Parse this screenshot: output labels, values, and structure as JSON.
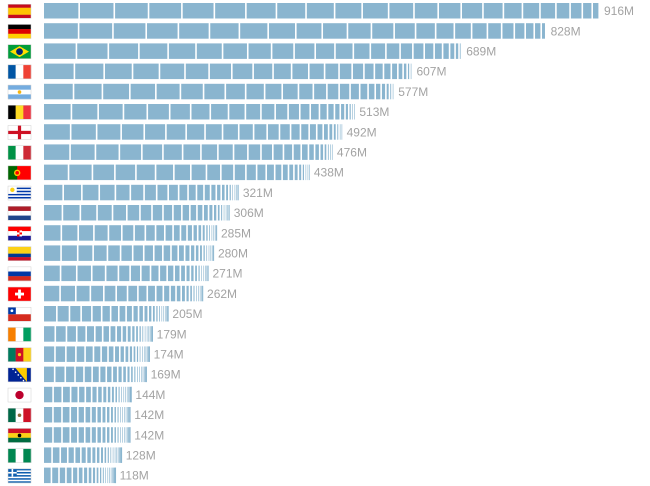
{
  "chart_data": {
    "type": "bar",
    "orientation": "horizontal",
    "bar_color": "#8ab5cf",
    "label_color": "#a3a3a3",
    "categories": [
      "Spain",
      "Germany",
      "Brazil",
      "France",
      "Argentina",
      "Belgium",
      "England",
      "Italy",
      "Portugal",
      "Uruguay",
      "Netherlands",
      "Croatia",
      "Colombia",
      "Russia",
      "Switzerland",
      "Chile",
      "Ivory Coast",
      "Cameroon",
      "Bosnia and Herzegovina",
      "Japan",
      "Mexico",
      "Ghana",
      "Nigeria",
      "Greece"
    ],
    "values": [
      916,
      828,
      689,
      607,
      577,
      513,
      492,
      476,
      438,
      321,
      306,
      285,
      280,
      271,
      262,
      205,
      179,
      174,
      169,
      144,
      142,
      142,
      128,
      118
    ],
    "value_labels": [
      "916M",
      "828M",
      "689M",
      "607M",
      "577M",
      "513M",
      "492M",
      "476M",
      "438M",
      "321M",
      "306M",
      "285M",
      "280M",
      "271M",
      "262M",
      "205M",
      "179M",
      "174M",
      "169M",
      "144M",
      "142M",
      "142M",
      "128M",
      "118M"
    ],
    "flag_icons": [
      "flag-spain-icon",
      "flag-germany-icon",
      "flag-brazil-icon",
      "flag-france-icon",
      "flag-argentina-icon",
      "flag-belgium-icon",
      "flag-england-icon",
      "flag-italy-icon",
      "flag-portugal-icon",
      "flag-uruguay-icon",
      "flag-netherlands-icon",
      "flag-croatia-icon",
      "flag-colombia-icon",
      "flag-russia-icon",
      "flag-switzerland-icon",
      "flag-chile-icon",
      "flag-ivory-coast-icon",
      "flag-cameroon-icon",
      "flag-bosnia-icon",
      "flag-japan-icon",
      "flag-mexico-icon",
      "flag-ghana-icon",
      "flag-nigeria-icon",
      "flag-greece-icon"
    ],
    "segment_note": "each bar is split into one segment per squad player, widest (most valuable) first"
  }
}
